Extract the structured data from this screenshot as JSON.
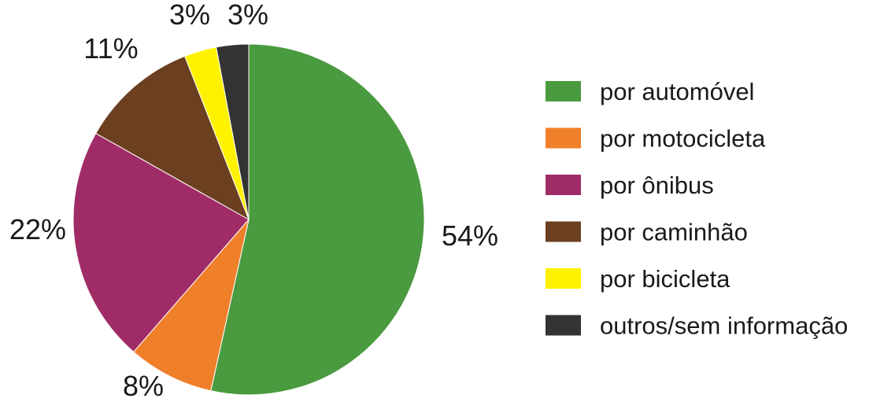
{
  "chart_data": {
    "type": "pie",
    "title": "",
    "slices": [
      {
        "label": "por automóvel",
        "value": 54,
        "display": "54%",
        "color": "#4a9a3f"
      },
      {
        "label": "por motocicleta",
        "value": 8,
        "display": "8%",
        "color": "#f07f2a"
      },
      {
        "label": "por ônibus",
        "value": 22,
        "display": "22%",
        "color": "#a02c67"
      },
      {
        "label": "por caminhão",
        "value": 11,
        "display": "11%",
        "color": "#6b3f1f"
      },
      {
        "label": "por bicicleta",
        "value": 3,
        "display": "3%",
        "color": "#fff200"
      },
      {
        "label": "outros/sem informação",
        "value": 3,
        "display": "3%",
        "color": "#333333"
      }
    ],
    "start_angle": "12 o'clock",
    "direction": "clockwise",
    "legend_position": "right"
  }
}
